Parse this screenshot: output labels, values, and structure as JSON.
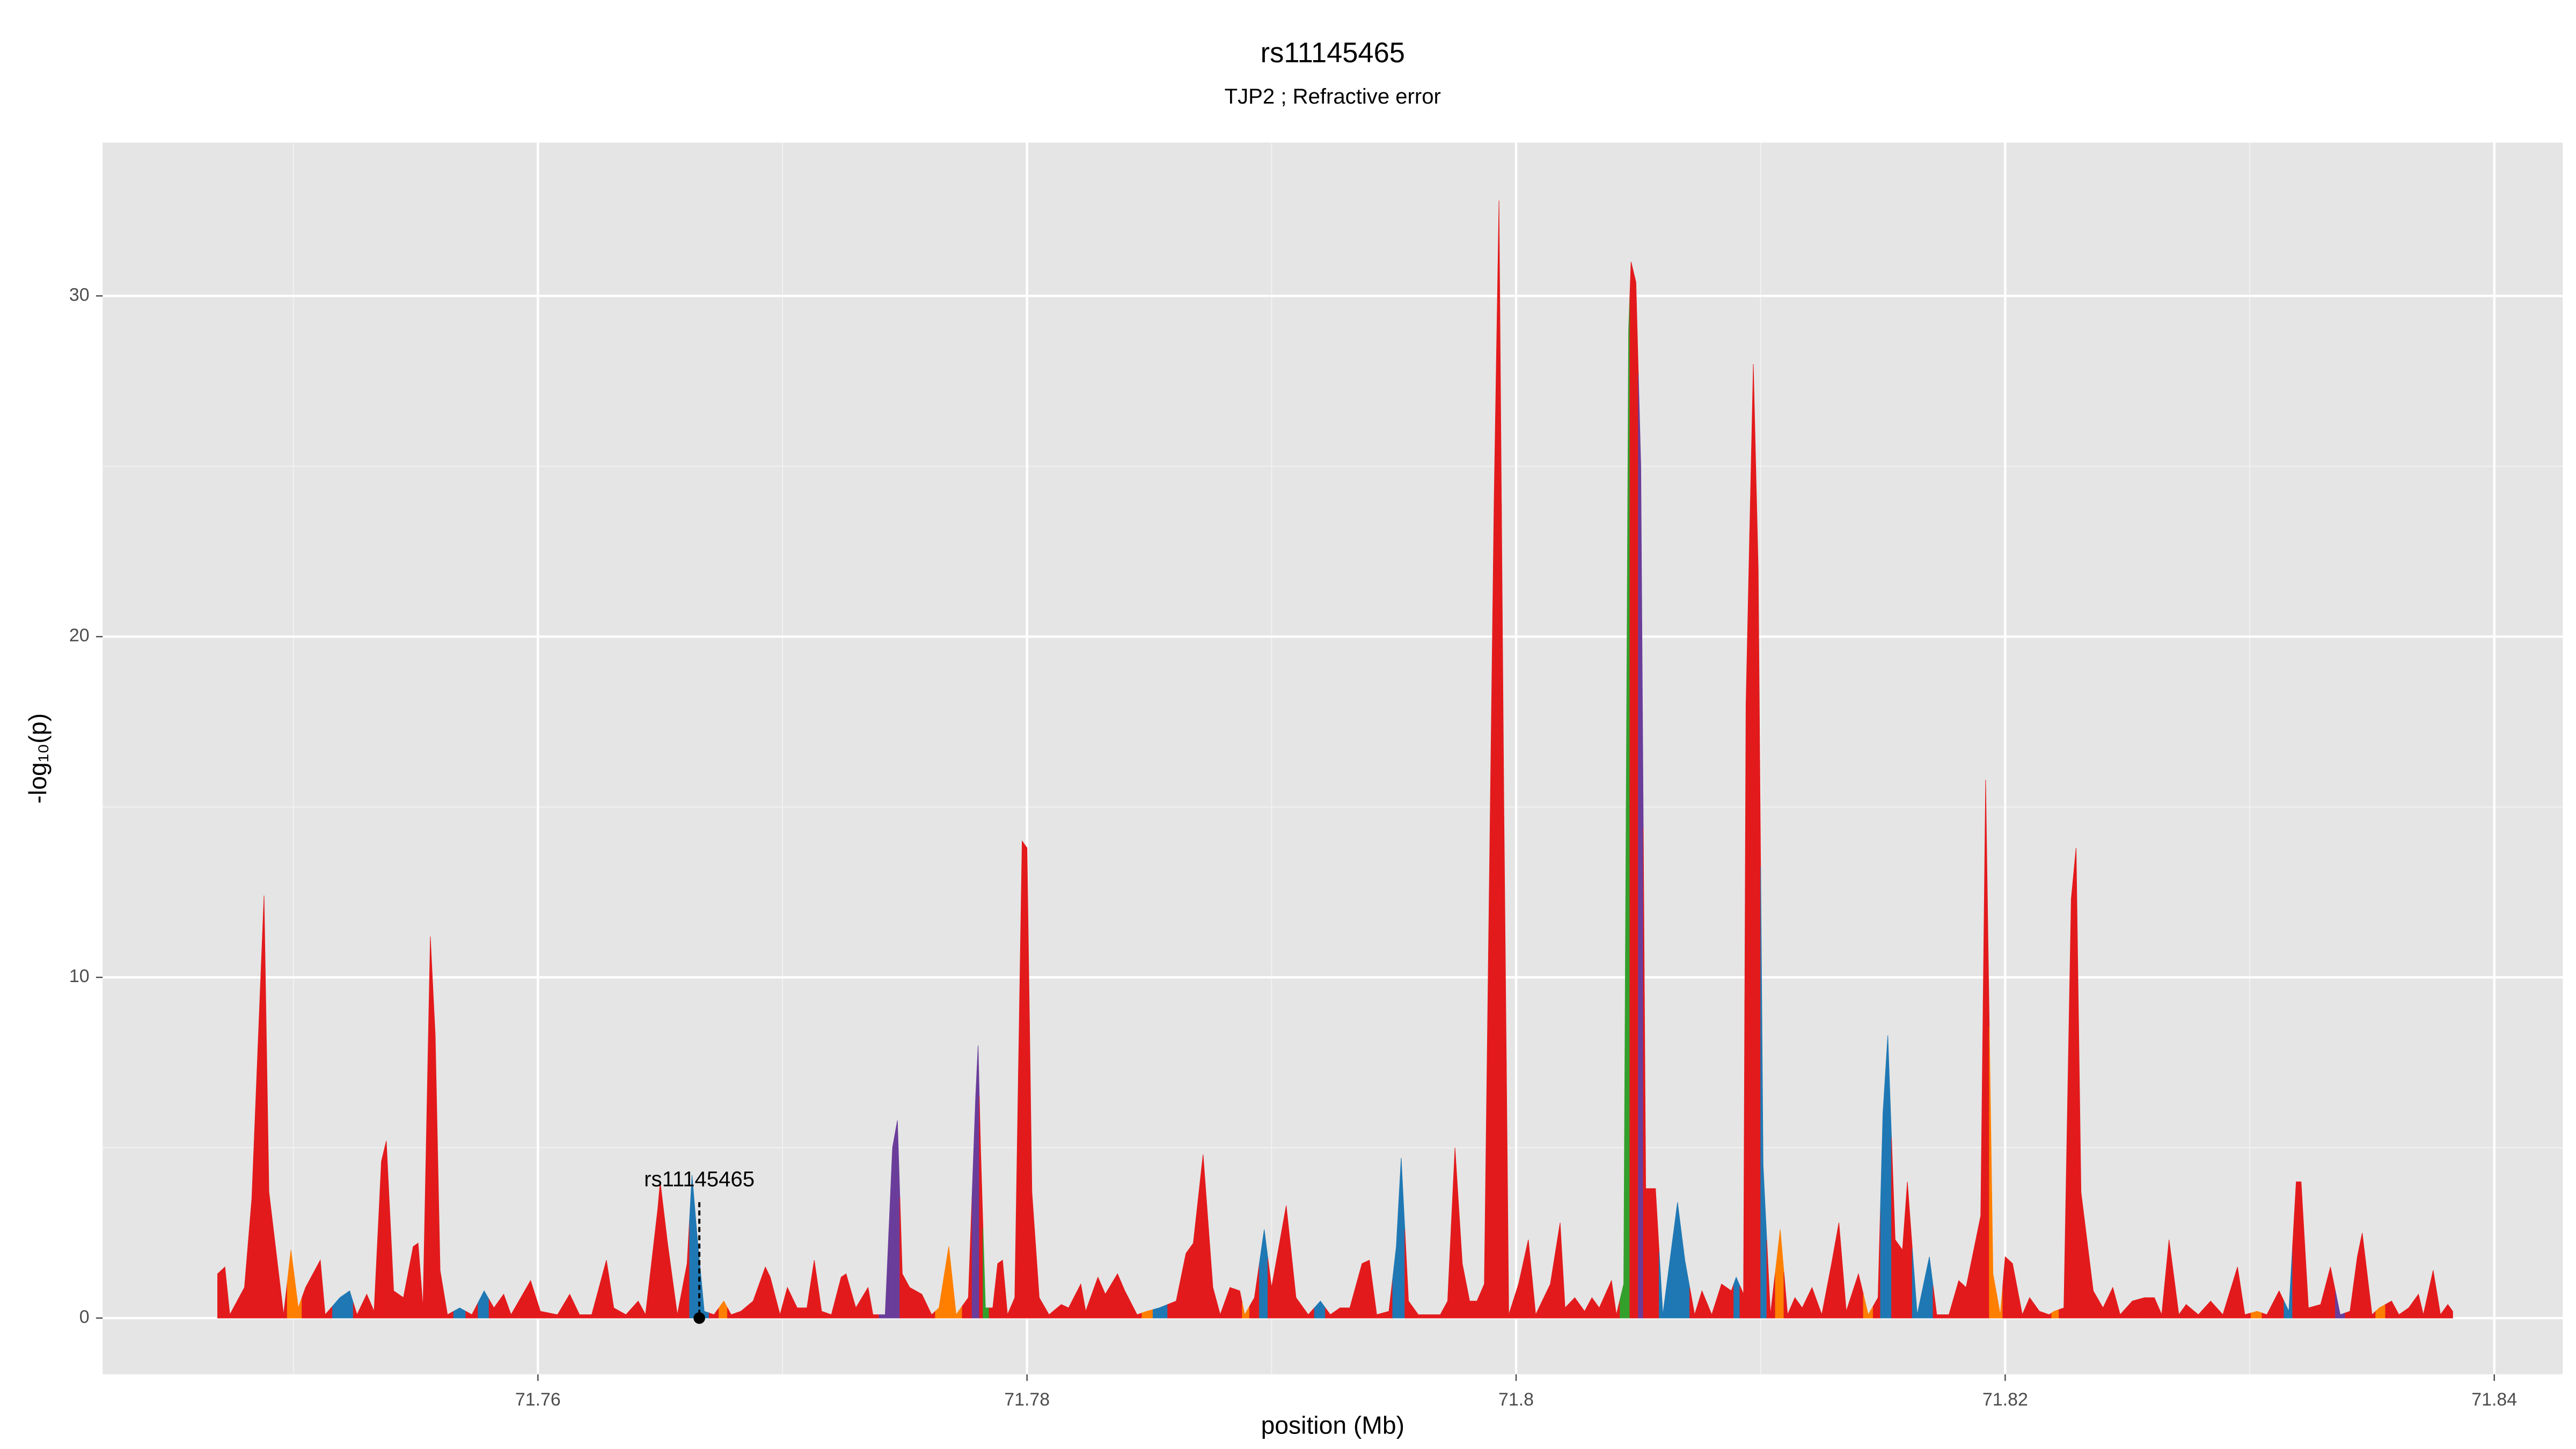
{
  "chart_data": {
    "type": "area",
    "title": "rs11145465",
    "subtitle": "TJP2 ; Refractive error",
    "x_label": "position (Mb)",
    "y_label": "-log₁₀(p)",
    "x": [
      71.7469,
      71.7472,
      71.7474,
      71.748,
      71.7483,
      71.7488,
      71.749,
      71.7494,
      71.7496,
      71.7499,
      71.7502,
      71.7505,
      71.7511,
      71.7513,
      71.7519,
      71.7523,
      71.7526,
      71.753,
      71.7533,
      71.7536,
      71.7538,
      71.7541,
      71.7545,
      71.7549,
      71.7551,
      71.7553,
      71.7556,
      71.7558,
      71.756,
      71.7563,
      71.7568,
      71.7573,
      71.7578,
      71.7582,
      71.7586,
      71.7589,
      71.7593,
      71.7597,
      71.7601,
      71.7608,
      71.7613,
      71.7617,
      71.7622,
      71.7628,
      71.7631,
      71.7636,
      71.7641,
      71.7644,
      71.7649,
      71.765,
      71.7653,
      71.7657,
      71.7661,
      71.7663,
      71.7665,
      71.7668,
      71.7672,
      71.7676,
      71.7679,
      71.7683,
      71.7688,
      71.7693,
      71.7695,
      71.7699,
      71.7702,
      71.7706,
      71.771,
      71.7713,
      71.7716,
      71.772,
      71.7724,
      71.7726,
      71.773,
      71.7735,
      71.7737,
      71.7742,
      71.7745,
      71.7747,
      71.7749,
      71.7752,
      71.7757,
      71.7761,
      71.7764,
      71.7768,
      71.7771,
      71.7776,
      71.7779,
      71.778,
      71.7781,
      71.7783,
      71.7786,
      71.7788,
      71.779,
      71.7792,
      71.7795,
      71.7798,
      71.78,
      71.7802,
      71.7805,
      71.7809,
      71.7814,
      71.7817,
      71.7822,
      71.7824,
      71.7829,
      71.7832,
      71.7837,
      71.784,
      71.7845,
      71.7849,
      71.7854,
      71.7861,
      71.7865,
      71.7868,
      71.7872,
      71.7876,
      71.7879,
      71.7883,
      71.7887,
      71.7889,
      71.7893,
      71.7897,
      71.79,
      71.7906,
      71.791,
      71.7915,
      71.792,
      71.7924,
      71.7928,
      71.7932,
      71.7937,
      71.794,
      71.7943,
      71.7948,
      71.7951,
      71.7953,
      71.7956,
      71.796,
      71.7969,
      71.7972,
      71.7975,
      71.7978,
      71.7981,
      71.7984,
      71.7987,
      71.7991,
      71.7993,
      71.7995,
      71.7997,
      71.8001,
      71.8005,
      71.8008,
      71.8014,
      71.8018,
      71.802,
      71.8024,
      71.8028,
      71.8031,
      71.8034,
      71.8039,
      71.8041,
      71.8044,
      71.8046,
      71.8047,
      71.8049,
      71.8051,
      71.8053,
      71.8057,
      71.806,
      71.8066,
      71.8069,
      71.8073,
      71.8076,
      71.808,
      71.8084,
      71.8088,
      71.809,
      71.8093,
      71.8094,
      71.8097,
      71.8099,
      71.8101,
      71.8104,
      71.8108,
      71.8111,
      71.8114,
      71.8117,
      71.8121,
      71.8125,
      71.8129,
      71.8132,
      71.8135,
      71.814,
      71.8144,
      71.8148,
      71.815,
      71.8152,
      71.8155,
      71.8158,
      71.816,
      71.8164,
      71.8169,
      71.8172,
      71.8177,
      71.8181,
      71.8184,
      71.819,
      71.8192,
      71.8195,
      71.8198,
      71.82,
      71.8203,
      71.8207,
      71.821,
      71.8214,
      71.8218,
      71.822,
      71.8224,
      71.8227,
      71.8229,
      71.8231,
      71.8236,
      71.824,
      71.8244,
      71.8247,
      71.8252,
      71.8257,
      71.8261,
      71.8264,
      71.8267,
      71.8271,
      71.8274,
      71.8279,
      71.8284,
      71.8289,
      71.8295,
      71.8298,
      71.8303,
      71.8307,
      71.8312,
      71.8316,
      71.8319,
      71.8321,
      71.8324,
      71.8329,
      71.8333,
      71.8337,
      71.8341,
      71.8344,
      71.8346,
      71.835,
      71.8353,
      71.8358,
      71.8361,
      71.8365,
      71.8369,
      71.8371,
      71.8375,
      71.8378,
      71.8381,
      71.8383
    ],
    "values": [
      1.3,
      1.5,
      0.1,
      0.9,
      3.5,
      12.4,
      3.7,
      1.3,
      0.1,
      2.0,
      0.3,
      0.9,
      1.7,
      0.1,
      0.6,
      0.8,
      0.1,
      0.7,
      0.2,
      4.6,
      5.2,
      0.8,
      0.6,
      2.1,
      2.2,
      0.3,
      11.2,
      8.3,
      1.4,
      0.1,
      0.3,
      0.1,
      0.8,
      0.3,
      0.7,
      0.1,
      0.6,
      1.1,
      0.2,
      0.1,
      0.7,
      0.1,
      0.1,
      1.7,
      0.3,
      0.1,
      0.5,
      0.1,
      3.2,
      4.0,
      2.2,
      0.1,
      1.6,
      4.2,
      2.5,
      0.2,
      0.1,
      0.5,
      0.1,
      0.2,
      0.5,
      1.5,
      1.2,
      0.1,
      0.9,
      0.3,
      0.3,
      1.7,
      0.2,
      0.1,
      1.2,
      1.3,
      0.3,
      0.9,
      0.1,
      0.1,
      5.0,
      5.8,
      1.3,
      0.9,
      0.7,
      0.1,
      0.3,
      2.1,
      0.1,
      0.6,
      6.5,
      8.0,
      5.0,
      0.3,
      0.3,
      1.6,
      1.7,
      0.1,
      0.6,
      14.0,
      13.8,
      3.7,
      0.6,
      0.1,
      0.4,
      0.3,
      1.0,
      0.2,
      1.2,
      0.7,
      1.3,
      0.8,
      0.1,
      0.2,
      0.3,
      0.5,
      1.9,
      2.2,
      4.8,
      0.9,
      0.1,
      0.9,
      0.8,
      0.1,
      0.6,
      2.6,
      0.9,
      3.3,
      0.6,
      0.1,
      0.5,
      0.1,
      0.3,
      0.3,
      1.6,
      1.7,
      0.1,
      0.2,
      2.1,
      4.7,
      0.5,
      0.1,
      0.1,
      0.5,
      5.0,
      1.6,
      0.5,
      0.5,
      1.0,
      24.0,
      32.8,
      15.0,
      0.1,
      1.0,
      2.3,
      0.1,
      1.0,
      2.8,
      0.3,
      0.6,
      0.2,
      0.6,
      0.3,
      1.1,
      0.1,
      1.0,
      29.0,
      31.0,
      30.4,
      25.0,
      3.8,
      3.8,
      0.1,
      3.4,
      1.7,
      0.1,
      0.8,
      0.1,
      1.0,
      0.8,
      1.2,
      0.7,
      18.0,
      28.0,
      22.0,
      4.5,
      0.1,
      2.6,
      0.1,
      0.6,
      0.3,
      0.9,
      0.1,
      1.6,
      2.8,
      0.2,
      1.3,
      0.1,
      0.6,
      6.0,
      8.3,
      2.3,
      2.0,
      4.0,
      0.1,
      1.8,
      0.1,
      0.1,
      1.1,
      0.9,
      3.0,
      15.8,
      1.3,
      0.1,
      1.8,
      1.6,
      0.1,
      0.6,
      0.2,
      0.1,
      0.2,
      0.3,
      12.3,
      13.8,
      3.7,
      0.8,
      0.3,
      0.9,
      0.1,
      0.5,
      0.6,
      0.6,
      0.1,
      2.3,
      0.1,
      0.4,
      0.1,
      0.5,
      0.1,
      1.5,
      0.1,
      0.2,
      0.1,
      0.8,
      0.2,
      4.0,
      4.0,
      0.3,
      0.4,
      1.5,
      0.1,
      0.2,
      1.8,
      2.5,
      0.1,
      0.3,
      0.5,
      0.1,
      0.3,
      0.7,
      0.1,
      1.4,
      0.1,
      0.4,
      0.2
    ],
    "colors": [
      "#e31a1c",
      "#e31a1c",
      "#e31a1c",
      "#e31a1c",
      "#e31a1c",
      "#e31a1c",
      "#e31a1c",
      "#e31a1c",
      "#e31a1c",
      "#ff7f00",
      "#ff7f00",
      "#e31a1c",
      "#e31a1c",
      "#e31a1c",
      "#1f78b4",
      "#1f78b4",
      "#e31a1c",
      "#e31a1c",
      "#e31a1c",
      "#e31a1c",
      "#e31a1c",
      "#e31a1c",
      "#e31a1c",
      "#e31a1c",
      "#e31a1c",
      "#e31a1c",
      "#e31a1c",
      "#e31a1c",
      "#e31a1c",
      "#e31a1c",
      "#1f78b4",
      "#e31a1c",
      "#1f78b4",
      "#e31a1c",
      "#e31a1c",
      "#e31a1c",
      "#e31a1c",
      "#e31a1c",
      "#e31a1c",
      "#e31a1c",
      "#e31a1c",
      "#e31a1c",
      "#e31a1c",
      "#e31a1c",
      "#e31a1c",
      "#e31a1c",
      "#e31a1c",
      "#e31a1c",
      "#e31a1c",
      "#e31a1c",
      "#e31a1c",
      "#e31a1c",
      "#e31a1c",
      "#1f78b4",
      "#1f78b4",
      "#1f78b4",
      "#e31a1c",
      "#ff7f00",
      "#e31a1c",
      "#e31a1c",
      "#e31a1c",
      "#e31a1c",
      "#e31a1c",
      "#e31a1c",
      "#e31a1c",
      "#e31a1c",
      "#e31a1c",
      "#e31a1c",
      "#e31a1c",
      "#e31a1c",
      "#e31a1c",
      "#e31a1c",
      "#e31a1c",
      "#e31a1c",
      "#e31a1c",
      "#6a3d9a",
      "#6a3d9a",
      "#6a3d9a",
      "#e31a1c",
      "#e31a1c",
      "#e31a1c",
      "#e31a1c",
      "#ff7f00",
      "#ff7f00",
      "#ff7f00",
      "#e31a1c",
      "#6a3d9a",
      "#6a3d9a",
      "#e31a1c",
      "#33a02c",
      "#e31a1c",
      "#e31a1c",
      "#e31a1c",
      "#e31a1c",
      "#e31a1c",
      "#e31a1c",
      "#e31a1c",
      "#e31a1c",
      "#e31a1c",
      "#e31a1c",
      "#e31a1c",
      "#e31a1c",
      "#e31a1c",
      "#e31a1c",
      "#e31a1c",
      "#e31a1c",
      "#e31a1c",
      "#e31a1c",
      "#e31a1c",
      "#ff7f00",
      "#1f78b4",
      "#e31a1c",
      "#e31a1c",
      "#e31a1c",
      "#e31a1c",
      "#e31a1c",
      "#e31a1c",
      "#e31a1c",
      "#e31a1c",
      "#ff7f00",
      "#e31a1c",
      "#1f78b4",
      "#e31a1c",
      "#e31a1c",
      "#e31a1c",
      "#e31a1c",
      "#1f78b4",
      "#e31a1c",
      "#e31a1c",
      "#e31a1c",
      "#e31a1c",
      "#e31a1c",
      "#e31a1c",
      "#e31a1c",
      "#1f78b4",
      "#1f78b4",
      "#e31a1c",
      "#e31a1c",
      "#e31a1c",
      "#e31a1c",
      "#e31a1c",
      "#e31a1c",
      "#e31a1c",
      "#e31a1c",
      "#e31a1c",
      "#e31a1c",
      "#e31a1c",
      "#e31a1c",
      "#e31a1c",
      "#e31a1c",
      "#e31a1c",
      "#e31a1c",
      "#e31a1c",
      "#e31a1c",
      "#e31a1c",
      "#e31a1c",
      "#e31a1c",
      "#e31a1c",
      "#e31a1c",
      "#e31a1c",
      "#e31a1c",
      "#33a02c",
      "#33a02c",
      "#e31a1c",
      "#e31a1c",
      "#6a3d9a",
      "#e31a1c",
      "#e31a1c",
      "#1f78b4",
      "#1f78b4",
      "#1f78b4",
      "#e31a1c",
      "#e31a1c",
      "#e31a1c",
      "#e31a1c",
      "#e31a1c",
      "#1f78b4",
      "#e31a1c",
      "#e31a1c",
      "#e31a1c",
      "#e31a1c",
      "#1f78b4",
      "#e31a1c",
      "#ff7f00",
      "#e31a1c",
      "#e31a1c",
      "#e31a1c",
      "#e31a1c",
      "#e31a1c",
      "#e31a1c",
      "#e31a1c",
      "#e31a1c",
      "#e31a1c",
      "#ff7f00",
      "#e31a1c",
      "#1f78b4",
      "#1f78b4",
      "#e31a1c",
      "#e31a1c",
      "#e31a1c",
      "#1f78b4",
      "#1f78b4",
      "#e31a1c",
      "#e31a1c",
      "#e31a1c",
      "#e31a1c",
      "#e31a1c",
      "#e31a1c",
      "#ff7f00",
      "#ff7f00",
      "#e31a1c",
      "#e31a1c",
      "#e31a1c",
      "#e31a1c",
      "#e31a1c",
      "#e31a1c",
      "#ff7f00",
      "#e31a1c",
      "#e31a1c",
      "#e31a1c",
      "#e31a1c",
      "#e31a1c",
      "#e31a1c",
      "#e31a1c",
      "#e31a1c",
      "#e31a1c",
      "#e31a1c",
      "#e31a1c",
      "#e31a1c",
      "#e31a1c",
      "#e31a1c",
      "#e31a1c",
      "#e31a1c",
      "#e31a1c",
      "#e31a1c",
      "#e31a1c",
      "#e31a1c",
      "#ff7f00",
      "#e31a1c",
      "#e31a1c",
      "#1f78b4",
      "#e31a1c",
      "#e31a1c",
      "#e31a1c",
      "#e31a1c",
      "#e31a1c",
      "#6a3d9a",
      "#e31a1c",
      "#e31a1c",
      "#e31a1c",
      "#e31a1c",
      "#ff7f00",
      "#e31a1c",
      "#e31a1c",
      "#e31a1c",
      "#e31a1c",
      "#e31a1c",
      "#e31a1c",
      "#e31a1c",
      "#e31a1c",
      "#e31a1c"
    ],
    "annotation": {
      "label": "rs11145465",
      "x": 71.7666,
      "y": 0
    },
    "xlim": [
      71.7422,
      71.8428
    ],
    "ylim": [
      -1.65,
      34.5
    ],
    "xticks": [
      71.76,
      71.78,
      71.8,
      71.82,
      71.84
    ],
    "yticks": [
      0,
      10,
      20,
      30
    ],
    "grid": true
  }
}
